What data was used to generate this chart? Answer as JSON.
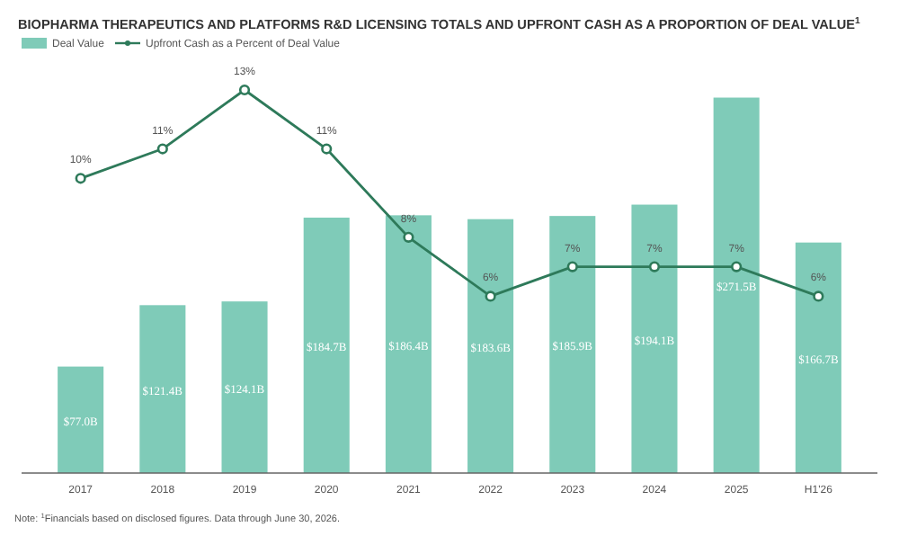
{
  "chart_data": {
    "type": "bar",
    "title": "BIOPHARMA THERAPEUTICS AND PLATFORMS R&D LICENSING TOTALS AND UPFRONT CASH AS A PROPORTION OF DEAL VALUE$^{1}$",
    "categories": [
      "2017",
      "2018",
      "2019",
      "2020",
      "2021",
      "2022",
      "2023",
      "2024",
      "2025",
      "H1'26"
    ],
    "series": [
      {
        "name": "Deal Value",
        "color": "#7fcbb8",
        "values": [
          77.0,
          121.4,
          124.1,
          184.7,
          186.4,
          183.6,
          185.9,
          194.1,
          271.5,
          166.7
        ],
        "value_labels": [
          "$77.0B",
          "$121.4B",
          "$124.1B",
          "$184.7B",
          "$186.4B",
          "$183.6B",
          "$185.9B",
          "$194.1B",
          "$271.5B",
          "$166.7B"
        ]
      },
      {
        "name": "Upfront Cash as a Percent of Deal Value",
        "type": "line",
        "axis": "y2",
        "color": "#2e7a5a",
        "marker": "circle",
        "values": [
          10,
          11,
          13,
          11,
          8,
          6,
          7,
          7,
          7,
          6
        ],
        "value_labels": [
          "10%",
          "11%",
          "13%",
          "11%",
          "8%",
          "6%",
          "7%",
          "7%",
          "7%",
          "6%"
        ]
      }
    ],
    "legend": "top left",
    "annotations": [
      "Note: $^{1}$Financials based on disclosed figures. Data through June 30, 2026."
    ]
  }
}
